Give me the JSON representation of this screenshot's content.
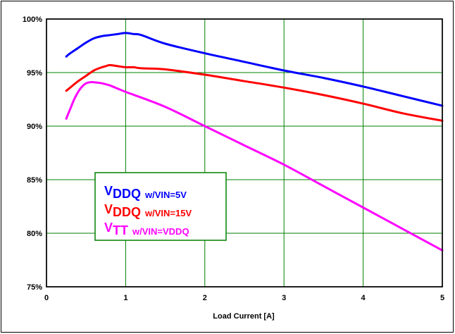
{
  "chart_data": {
    "type": "line",
    "title": "",
    "xlabel": "Load Current [A]",
    "ylabel": "",
    "xlim": [
      0,
      5
    ],
    "ylim": [
      75,
      100
    ],
    "x_ticks": [
      0,
      1,
      2,
      3,
      4,
      5
    ],
    "y_ticks": [
      75,
      80,
      85,
      90,
      95,
      100
    ],
    "y_tick_labels": [
      "75%",
      "80%",
      "85%",
      "90%",
      "95%",
      "100%"
    ],
    "grid": true,
    "grid_color": "#008000",
    "legend_position": "center-left",
    "series": [
      {
        "name": "VDDQ w/VIN=5V",
        "name_main": "V",
        "name_sub": "DDQ",
        "name_suffix": "w/VIN=5V",
        "color": "#0000ff",
        "x": [
          0.25,
          0.3,
          0.4,
          0.5,
          0.6,
          0.7,
          0.8,
          0.9,
          1.0,
          1.1,
          1.2,
          1.5,
          2.0,
          2.5,
          3.0,
          3.5,
          4.0,
          4.5,
          5.0
        ],
        "y": [
          96.5,
          96.8,
          97.3,
          97.8,
          98.2,
          98.4,
          98.5,
          98.6,
          98.7,
          98.6,
          98.5,
          97.7,
          96.8,
          96.0,
          95.2,
          94.5,
          93.7,
          92.8,
          91.9
        ]
      },
      {
        "name": "VDDQ w/VIN=15V",
        "name_main": "V",
        "name_sub": "DDQ",
        "name_suffix": "w/VIN=15V",
        "color": "#ff0000",
        "x": [
          0.25,
          0.3,
          0.4,
          0.5,
          0.6,
          0.7,
          0.75,
          0.8,
          0.9,
          1.0,
          1.1,
          1.2,
          1.5,
          2.0,
          2.5,
          3.0,
          3.5,
          4.0,
          4.5,
          5.0
        ],
        "y": [
          93.3,
          93.6,
          94.2,
          94.7,
          95.2,
          95.5,
          95.6,
          95.7,
          95.6,
          95.5,
          95.5,
          95.4,
          95.3,
          94.8,
          94.2,
          93.6,
          92.9,
          92.1,
          91.2,
          90.5
        ]
      },
      {
        "name": "VTT w/VIN=VDDQ",
        "name_main": "V",
        "name_sub": "TT",
        "name_suffix": "w/VIN=VDDQ",
        "color": "#ff00ff",
        "x": [
          0.25,
          0.3,
          0.35,
          0.4,
          0.45,
          0.5,
          0.55,
          0.6,
          0.7,
          0.8,
          0.9,
          1.0,
          1.5,
          2.0,
          2.5,
          3.0,
          3.5,
          4.0,
          4.5,
          5.0
        ],
        "y": [
          90.7,
          91.6,
          92.5,
          93.2,
          93.7,
          94.0,
          94.1,
          94.1,
          94.0,
          93.8,
          93.5,
          93.2,
          91.8,
          90.0,
          88.2,
          86.4,
          84.4,
          82.4,
          80.4,
          78.4
        ]
      }
    ]
  }
}
